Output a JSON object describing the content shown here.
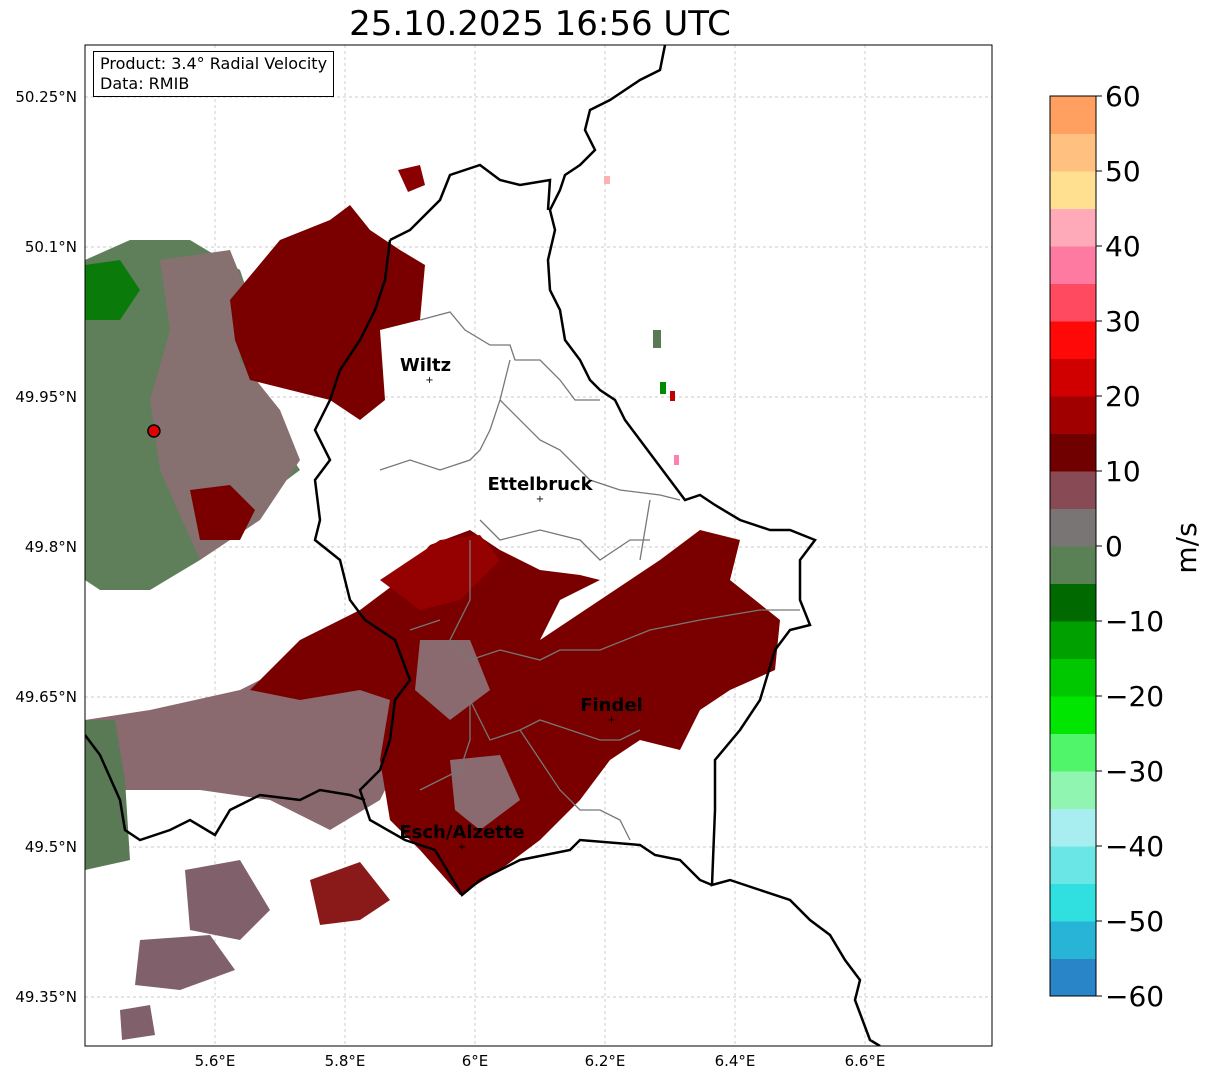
{
  "title": "25.10.2025 16:56 UTC",
  "info": {
    "product": "Product: 3.4° Radial Velocity",
    "data": "Data: RMIB"
  },
  "map": {
    "lon_range": [
      5.4,
      6.8
    ],
    "lat_range": [
      49.3,
      50.302
    ],
    "lon_ticks": [
      {
        "v": 5.6,
        "label": "5.6°E"
      },
      {
        "v": 5.8,
        "label": "5.8°E"
      },
      {
        "v": 6.0,
        "label": "6°E"
      },
      {
        "v": 6.2,
        "label": "6.2°E"
      },
      {
        "v": 6.4,
        "label": "6.4°E"
      },
      {
        "v": 6.6,
        "label": "6.6°E"
      }
    ],
    "lat_ticks": [
      {
        "v": 50.25,
        "label": "50.25°N"
      },
      {
        "v": 50.1,
        "label": "50.1°N"
      },
      {
        "v": 49.95,
        "label": "49.95°N"
      },
      {
        "v": 49.8,
        "label": "49.8°N"
      },
      {
        "v": 49.65,
        "label": "49.65°N"
      },
      {
        "v": 49.5,
        "label": "49.5°N"
      },
      {
        "v": 49.35,
        "label": "49.35°N"
      }
    ],
    "cities": [
      {
        "name": "Wiltz",
        "lon": 5.93,
        "lat": 49.967
      },
      {
        "name": "Ettelbruck",
        "lon": 6.1,
        "lat": 49.848
      },
      {
        "name": "Findel",
        "lon": 6.21,
        "lat": 49.627
      },
      {
        "name": "Esch/Alzette",
        "lon": 5.98,
        "lat": 49.5
      }
    ],
    "radar_site": {
      "lon": 5.506,
      "lat": 49.916
    }
  },
  "colorbar": {
    "label": "m/s",
    "range": [
      -60,
      60
    ],
    "ticks": [
      {
        "v": 60,
        "label": "60"
      },
      {
        "v": 50,
        "label": "50"
      },
      {
        "v": 40,
        "label": "40"
      },
      {
        "v": 30,
        "label": "30"
      },
      {
        "v": 20,
        "label": "20"
      },
      {
        "v": 10,
        "label": "10"
      },
      {
        "v": 0,
        "label": "0"
      },
      {
        "v": -10,
        "label": "−10"
      },
      {
        "v": -20,
        "label": "−20"
      },
      {
        "v": -30,
        "label": "−30"
      },
      {
        "v": -40,
        "label": "−40"
      },
      {
        "v": -50,
        "label": "−50"
      },
      {
        "v": -60,
        "label": "−60"
      }
    ],
    "colors": [
      "#2a85c8",
      "#27b4d6",
      "#30e0e0",
      "#6ae6e6",
      "#a8eef0",
      "#8ff5b0",
      "#50f56a",
      "#00e600",
      "#00c800",
      "#00a000",
      "#006a00",
      "#5a8055",
      "#7a7575",
      "#884a55",
      "#700000",
      "#a00000",
      "#d00000",
      "#ff0808",
      "#ff4a60",
      "#ff7aa0",
      "#ffaab8",
      "#ffe090",
      "#ffc080",
      "#ffa060"
    ]
  }
}
